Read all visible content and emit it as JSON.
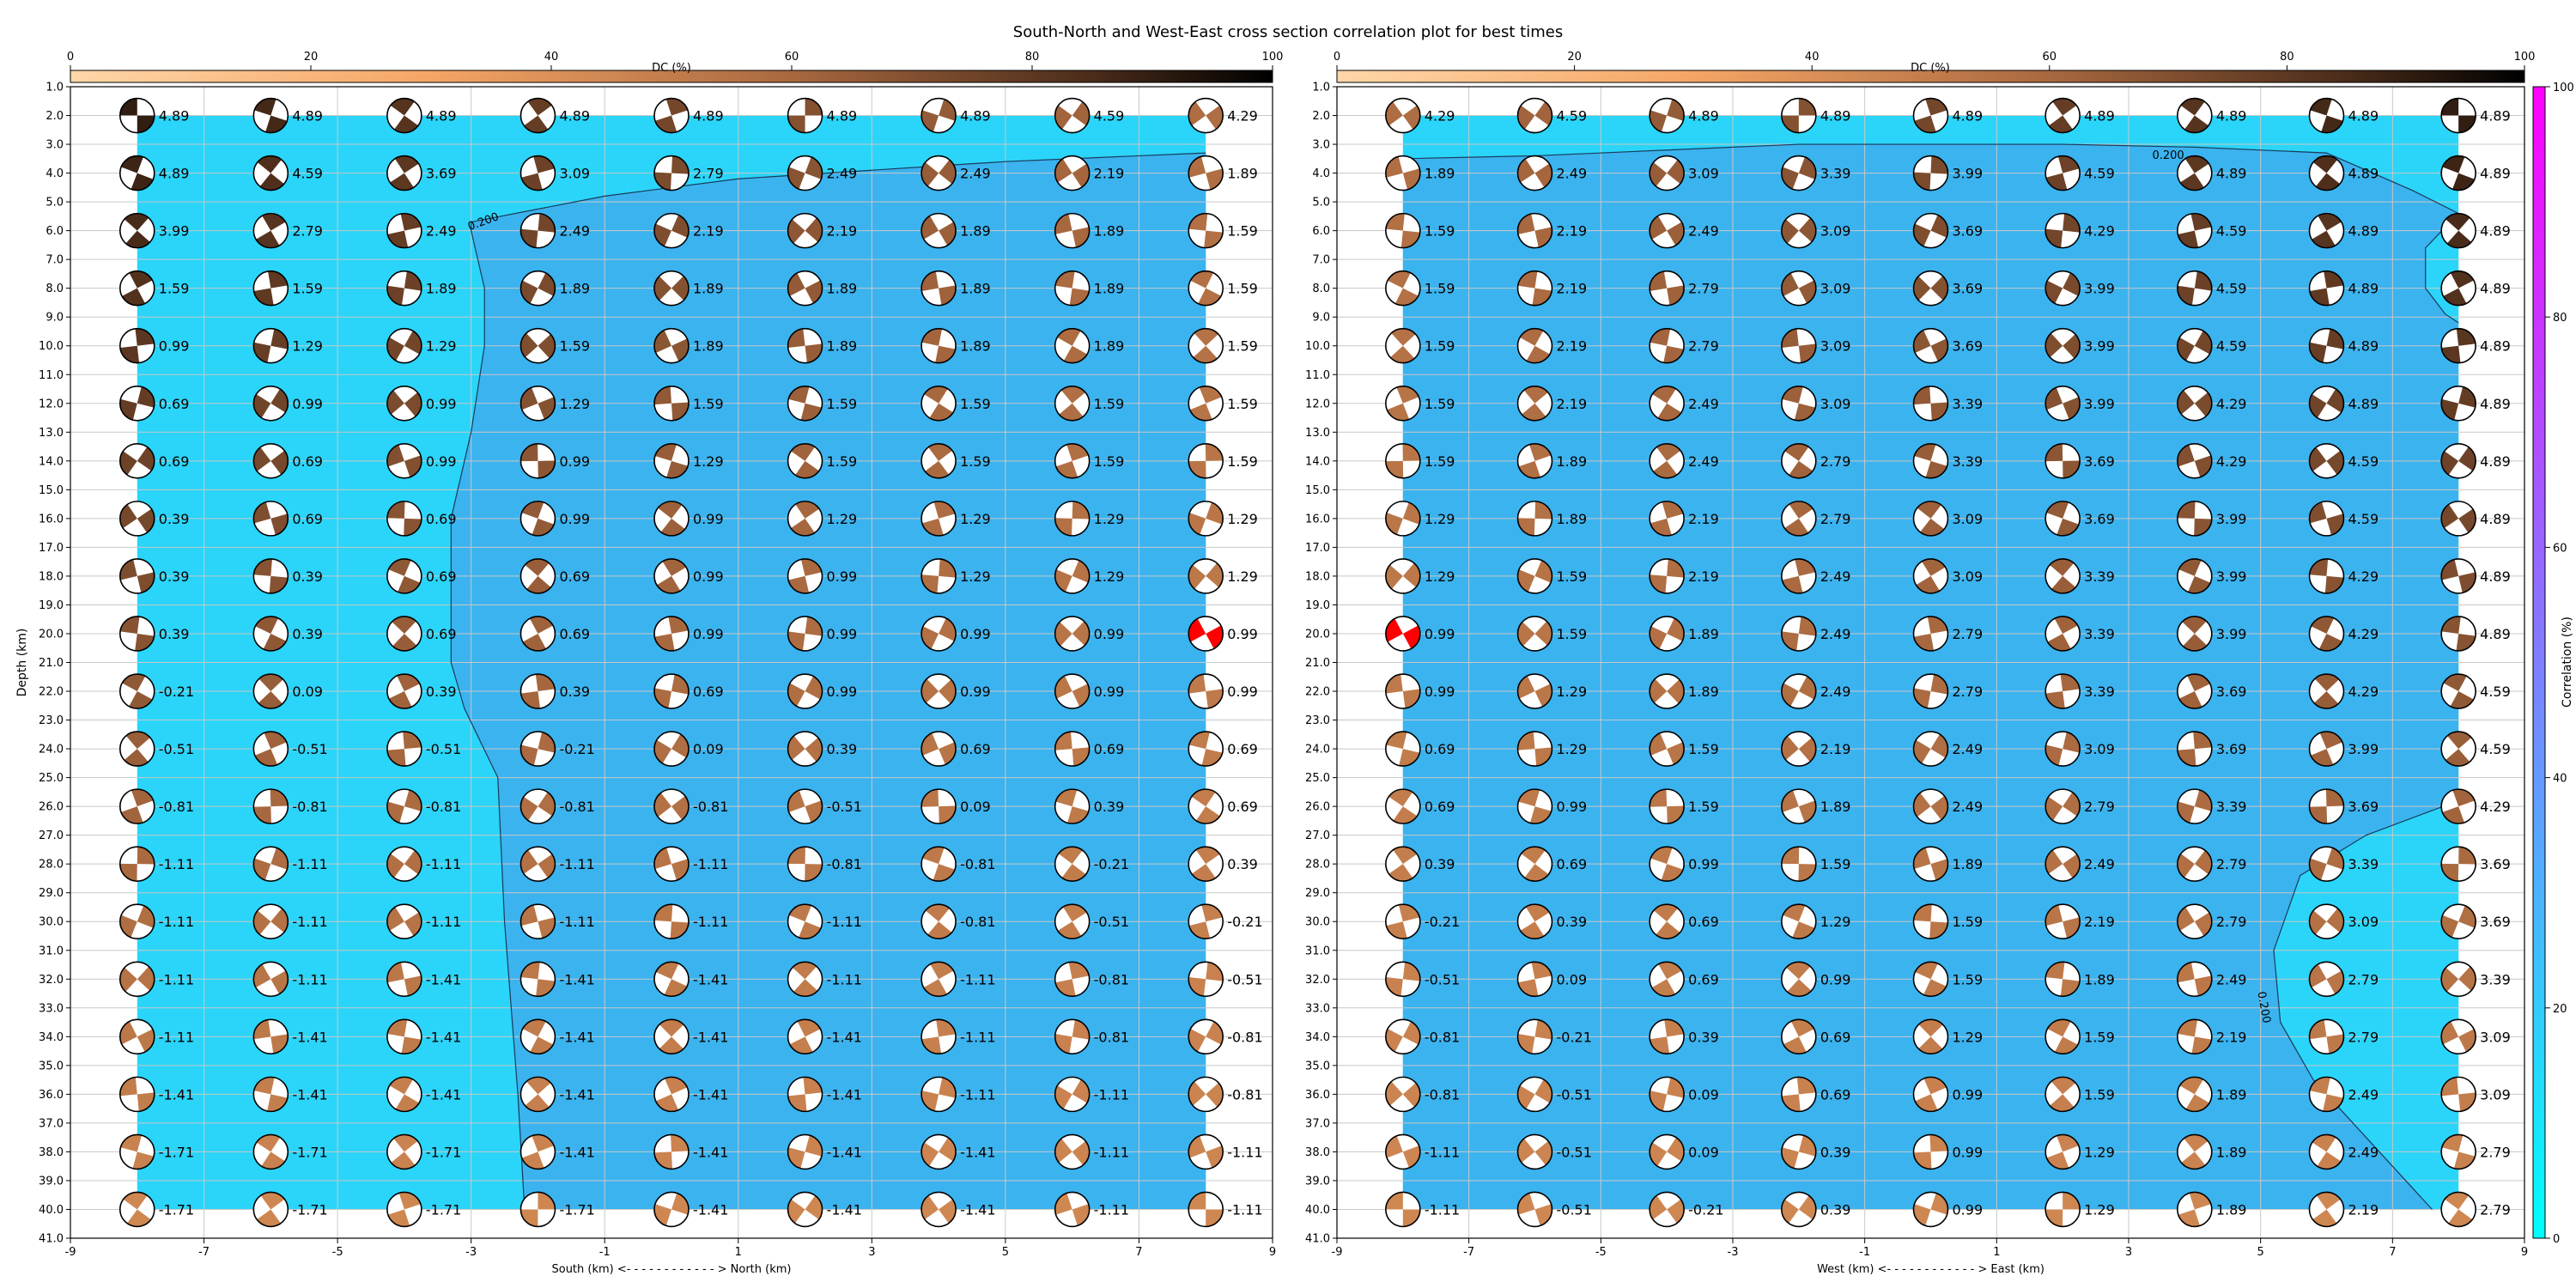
{
  "figure": {
    "title": "South-North and West-East cross section correlation plot for best times"
  },
  "colors": {
    "region_low": "#2ad5f9",
    "region_high": "#3bb3ef",
    "beachball_base": "#ffffff",
    "grid": "#c8c8c8",
    "contour": "#1a3a5a",
    "best": "#ff0000"
  },
  "dc_colorbar": {
    "label": "DC (%)",
    "ticks": [
      0,
      20,
      40,
      60,
      80,
      100
    ]
  },
  "corr_colorbar": {
    "label": "Correlation (%)",
    "ticks": [
      0,
      20,
      40,
      60,
      80,
      100
    ]
  },
  "chart_data": [
    {
      "type": "scatter",
      "name": "South-North cross section",
      "xlabel": "South (km) <- - - - - - - - - - - - > North (km)",
      "ylabel": "Depth (km)",
      "xlim": [
        -9,
        9
      ],
      "ylim": [
        41,
        1
      ],
      "xticks": [
        -9,
        -7,
        -5,
        -3,
        -1,
        1,
        3,
        5,
        7,
        9
      ],
      "x": [
        -8,
        -6,
        -4,
        -2,
        0,
        2,
        4,
        6,
        8
      ],
      "depths": [
        2,
        4,
        6,
        8,
        10,
        12,
        14,
        16,
        18,
        20,
        22,
        24,
        26,
        28,
        30,
        32,
        34,
        36,
        38,
        40
      ],
      "time_shift_s": [
        [
          4.89,
          4.89,
          4.89,
          4.89,
          4.89,
          4.89,
          4.89,
          4.59,
          4.29
        ],
        [
          4.89,
          4.59,
          3.69,
          3.09,
          2.79,
          2.49,
          2.49,
          2.19,
          1.89
        ],
        [
          3.99,
          2.79,
          2.49,
          2.49,
          2.19,
          2.19,
          1.89,
          1.89,
          1.59
        ],
        [
          1.59,
          1.59,
          1.89,
          1.89,
          1.89,
          1.89,
          1.89,
          1.89,
          1.59
        ],
        [
          0.99,
          1.29,
          1.29,
          1.59,
          1.89,
          1.89,
          1.89,
          1.89,
          1.59
        ],
        [
          0.69,
          0.99,
          0.99,
          1.29,
          1.59,
          1.59,
          1.59,
          1.59,
          1.59
        ],
        [
          0.69,
          0.69,
          0.99,
          0.99,
          1.29,
          1.59,
          1.59,
          1.59,
          1.59
        ],
        [
          0.39,
          0.69,
          0.69,
          0.99,
          0.99,
          1.29,
          1.29,
          1.29,
          1.29
        ],
        [
          0.39,
          0.39,
          0.69,
          0.69,
          0.99,
          0.99,
          1.29,
          1.29,
          1.29
        ],
        [
          0.39,
          0.39,
          0.69,
          0.69,
          0.99,
          0.99,
          0.99,
          0.99,
          0.99
        ],
        [
          -0.21,
          0.09,
          0.39,
          0.39,
          0.69,
          0.99,
          0.99,
          0.99,
          0.99
        ],
        [
          -0.51,
          -0.51,
          -0.51,
          -0.21,
          0.09,
          0.39,
          0.69,
          0.69,
          0.69
        ],
        [
          -0.81,
          -0.81,
          -0.81,
          -0.81,
          -0.81,
          -0.51,
          0.09,
          0.39,
          0.69
        ],
        [
          -1.11,
          -1.11,
          -1.11,
          -1.11,
          -1.11,
          -0.81,
          -0.81,
          -0.21,
          0.39
        ],
        [
          -1.11,
          -1.11,
          -1.11,
          -1.11,
          -1.11,
          -1.11,
          -0.81,
          -0.51,
          -0.21
        ],
        [
          -1.11,
          -1.11,
          -1.41,
          -1.41,
          -1.41,
          -1.11,
          -1.11,
          -0.81,
          -0.51
        ],
        [
          -1.11,
          -1.41,
          -1.41,
          -1.41,
          -1.41,
          -1.41,
          -1.11,
          -0.81,
          -0.81
        ],
        [
          -1.41,
          -1.41,
          -1.41,
          -1.41,
          -1.41,
          -1.41,
          -1.11,
          -1.11,
          -0.81
        ],
        [
          -1.71,
          -1.71,
          -1.71,
          -1.41,
          -1.41,
          -1.41,
          -1.41,
          -1.11,
          -1.11
        ],
        [
          -1.71,
          -1.71,
          -1.71,
          -1.71,
          -1.41,
          -1.41,
          -1.41,
          -1.11,
          -1.11
        ]
      ],
      "best_solution": {
        "x": 8,
        "depth": 20
      },
      "contour": {
        "level_label": "0.200",
        "label_at": [
          -2.8,
          5.8
        ],
        "path": [
          [
            -2.2,
            40
          ],
          [
            -2.3,
            36
          ],
          [
            -2.5,
            30
          ],
          [
            -2.6,
            25
          ],
          [
            -3.1,
            22.6
          ],
          [
            -3.3,
            21
          ],
          [
            -3.3,
            18
          ],
          [
            -3.3,
            16
          ],
          [
            -3.0,
            13
          ],
          [
            -2.8,
            10
          ],
          [
            -2.8,
            8
          ],
          [
            -3.0,
            6
          ],
          [
            -3.0,
            5.7
          ],
          [
            -1,
            4.8
          ],
          [
            1,
            4.2
          ],
          [
            3,
            3.9
          ],
          [
            5,
            3.6
          ],
          [
            7,
            3.4
          ],
          [
            8.0,
            3.3
          ]
        ]
      }
    },
    {
      "type": "scatter",
      "name": "West-East cross section",
      "xlabel": "West (km) <- - - - - - - - - - - - > East (km)",
      "ylabel": "",
      "xlim": [
        -9,
        9
      ],
      "ylim": [
        41,
        1
      ],
      "xticks": [
        -9,
        -7,
        -5,
        -3,
        -1,
        1,
        3,
        5,
        7,
        9
      ],
      "x": [
        -8,
        -6,
        -4,
        -2,
        0,
        2,
        4,
        6,
        8
      ],
      "depths": [
        2,
        4,
        6,
        8,
        10,
        12,
        14,
        16,
        18,
        20,
        22,
        24,
        26,
        28,
        30,
        32,
        34,
        36,
        38,
        40
      ],
      "time_shift_s": [
        [
          4.29,
          4.59,
          4.89,
          4.89,
          4.89,
          4.89,
          4.89,
          4.89,
          4.89
        ],
        [
          1.89,
          2.49,
          3.09,
          3.39,
          3.99,
          4.59,
          4.89,
          4.89,
          4.89
        ],
        [
          1.59,
          2.19,
          2.49,
          3.09,
          3.69,
          4.29,
          4.59,
          4.89,
          4.89
        ],
        [
          1.59,
          2.19,
          2.79,
          3.09,
          3.69,
          3.99,
          4.59,
          4.89,
          4.89
        ],
        [
          1.59,
          2.19,
          2.79,
          3.09,
          3.69,
          3.99,
          4.59,
          4.89,
          4.89
        ],
        [
          1.59,
          2.19,
          2.49,
          3.09,
          3.39,
          3.99,
          4.29,
          4.89,
          4.89
        ],
        [
          1.59,
          1.89,
          2.49,
          2.79,
          3.39,
          3.69,
          4.29,
          4.59,
          4.89
        ],
        [
          1.29,
          1.89,
          2.19,
          2.79,
          3.09,
          3.69,
          3.99,
          4.59,
          4.89
        ],
        [
          1.29,
          1.59,
          2.19,
          2.49,
          3.09,
          3.39,
          3.99,
          4.29,
          4.89
        ],
        [
          0.99,
          1.59,
          1.89,
          2.49,
          2.79,
          3.39,
          3.99,
          4.29,
          4.89
        ],
        [
          0.99,
          1.29,
          1.89,
          2.49,
          2.79,
          3.39,
          3.69,
          4.29,
          4.59
        ],
        [
          0.69,
          1.29,
          1.59,
          2.19,
          2.49,
          3.09,
          3.69,
          3.99,
          4.59
        ],
        [
          0.69,
          0.99,
          1.59,
          1.89,
          2.49,
          2.79,
          3.39,
          3.69,
          4.29
        ],
        [
          0.39,
          0.69,
          0.99,
          1.59,
          1.89,
          2.49,
          2.79,
          3.39,
          3.69
        ],
        [
          -0.21,
          0.39,
          0.69,
          1.29,
          1.59,
          2.19,
          2.79,
          3.09,
          3.69
        ],
        [
          -0.51,
          0.09,
          0.69,
          0.99,
          1.59,
          1.89,
          2.49,
          2.79,
          3.39
        ],
        [
          -0.81,
          -0.21,
          0.39,
          0.69,
          1.29,
          1.59,
          2.19,
          2.79,
          3.09
        ],
        [
          -0.81,
          -0.51,
          0.09,
          0.69,
          0.99,
          1.59,
          1.89,
          2.49,
          3.09
        ],
        [
          -1.11,
          -0.51,
          0.09,
          0.39,
          0.99,
          1.29,
          1.89,
          2.49,
          2.79
        ],
        [
          -1.11,
          -0.51,
          -0.21,
          0.39,
          0.99,
          1.29,
          1.89,
          2.19,
          2.79
        ]
      ],
      "best_solution": {
        "x": -8,
        "depth": 20
      },
      "contour": {
        "level_label": "0.200",
        "label_at": [
          5.0,
          33.0
        ],
        "path": [
          [
            8.0,
            3.3
          ],
          [
            6,
            3.2
          ],
          [
            4,
            3.1
          ],
          [
            2,
            3.0
          ],
          [
            0,
            3.0
          ],
          [
            -2,
            3.0
          ],
          [
            -4,
            3.2
          ],
          [
            -6,
            3.4
          ],
          [
            -8,
            3.5
          ],
          [
            -8.0,
            3.5
          ],
          [
            6,
            3.3
          ],
          [
            7.5,
            4.5
          ],
          [
            8.0,
            5.4
          ]
        ]
      }
    }
  ]
}
